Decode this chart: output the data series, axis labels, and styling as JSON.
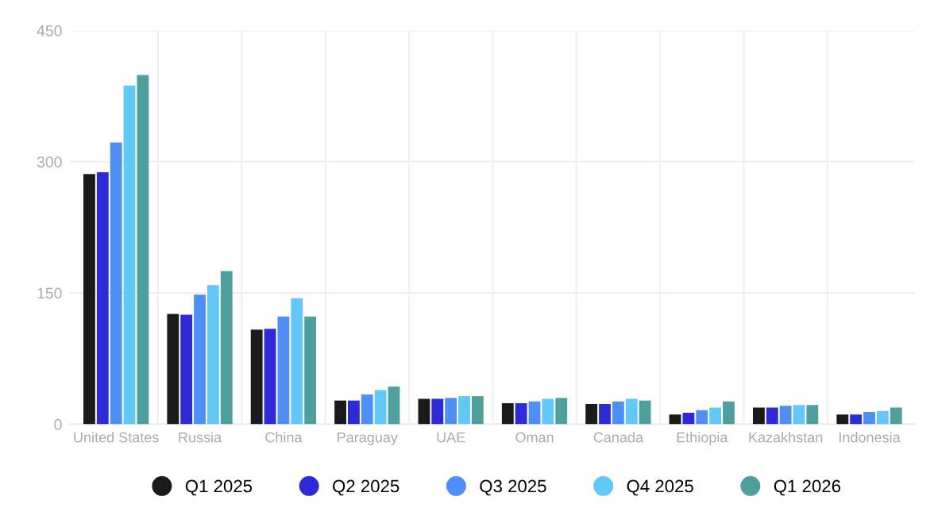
{
  "chart_data": {
    "type": "bar",
    "categories": [
      "United States",
      "Russia",
      "China",
      "Paraguay",
      "UAE",
      "Oman",
      "Canada",
      "Ethiopia",
      "Kazakhstan",
      "Indonesia"
    ],
    "series": [
      {
        "name": "Q1 2025",
        "color": "#1a1a1a",
        "values": [
          286,
          126,
          108,
          27,
          29,
          24,
          23,
          11,
          19,
          11
        ]
      },
      {
        "name": "Q2 2025",
        "color": "#2e2ad6",
        "values": [
          288,
          125,
          109,
          27,
          29,
          24,
          23,
          13,
          19,
          11
        ]
      },
      {
        "name": "Q3 2025",
        "color": "#4f8ff5",
        "values": [
          322,
          148,
          123,
          34,
          30,
          26,
          26,
          16,
          21,
          14
        ]
      },
      {
        "name": "Q4 2025",
        "color": "#62c8f5",
        "values": [
          387,
          159,
          144,
          39,
          32,
          29,
          29,
          19,
          22,
          15
        ]
      },
      {
        "name": "Q1 2026",
        "color": "#4f9f9c",
        "values": [
          399,
          175,
          123,
          43,
          32,
          30,
          27,
          26,
          22,
          19
        ]
      }
    ],
    "ylim": [
      0,
      450
    ],
    "yticks": [
      0,
      150,
      300,
      450
    ],
    "grid": true,
    "legend": "bottom"
  }
}
